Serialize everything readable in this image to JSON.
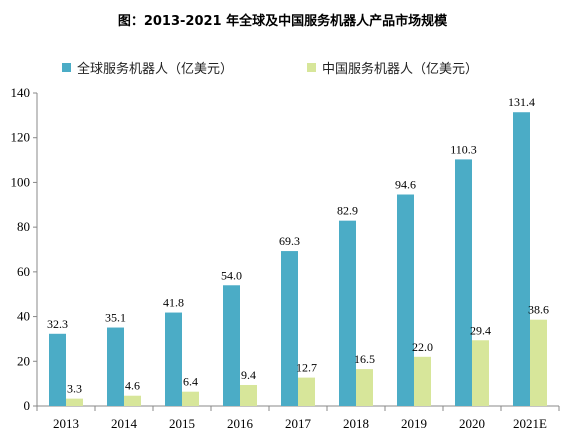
{
  "chart_data": {
    "type": "bar",
    "title": "图：2013-2021 年全球及中国服务机器人产品市场规模",
    "categories": [
      "2013",
      "2014",
      "2015",
      "2016",
      "2017",
      "2018",
      "2019",
      "2020",
      "2021E"
    ],
    "series": [
      {
        "name": "全球服务机器人（亿美元）",
        "color": "#4BACC6",
        "values": [
          32.3,
          35.1,
          41.8,
          54.0,
          69.3,
          82.9,
          94.6,
          110.3,
          131.4
        ],
        "labels": [
          "32.3",
          "35.1",
          "41.8",
          "54.0",
          "69.3",
          "82.9",
          "94.6",
          "110.3",
          "131.4"
        ]
      },
      {
        "name": "中国服务机器人（亿美元）",
        "color": "#D7E69A",
        "values": [
          3.3,
          4.6,
          6.4,
          9.4,
          12.7,
          16.5,
          22.0,
          29.4,
          38.6
        ],
        "labels": [
          "3.3",
          "4.6",
          "6.4",
          "9.4",
          "12.7",
          "16.5",
          "22.0",
          "29.4",
          "38.6"
        ]
      }
    ],
    "ylim": [
      0,
      140
    ],
    "yticks": [
      "0",
      "20",
      "40",
      "60",
      "80",
      "100",
      "120",
      "140"
    ],
    "xlabel": "",
    "ylabel": "",
    "legend": "top",
    "grid": false
  }
}
